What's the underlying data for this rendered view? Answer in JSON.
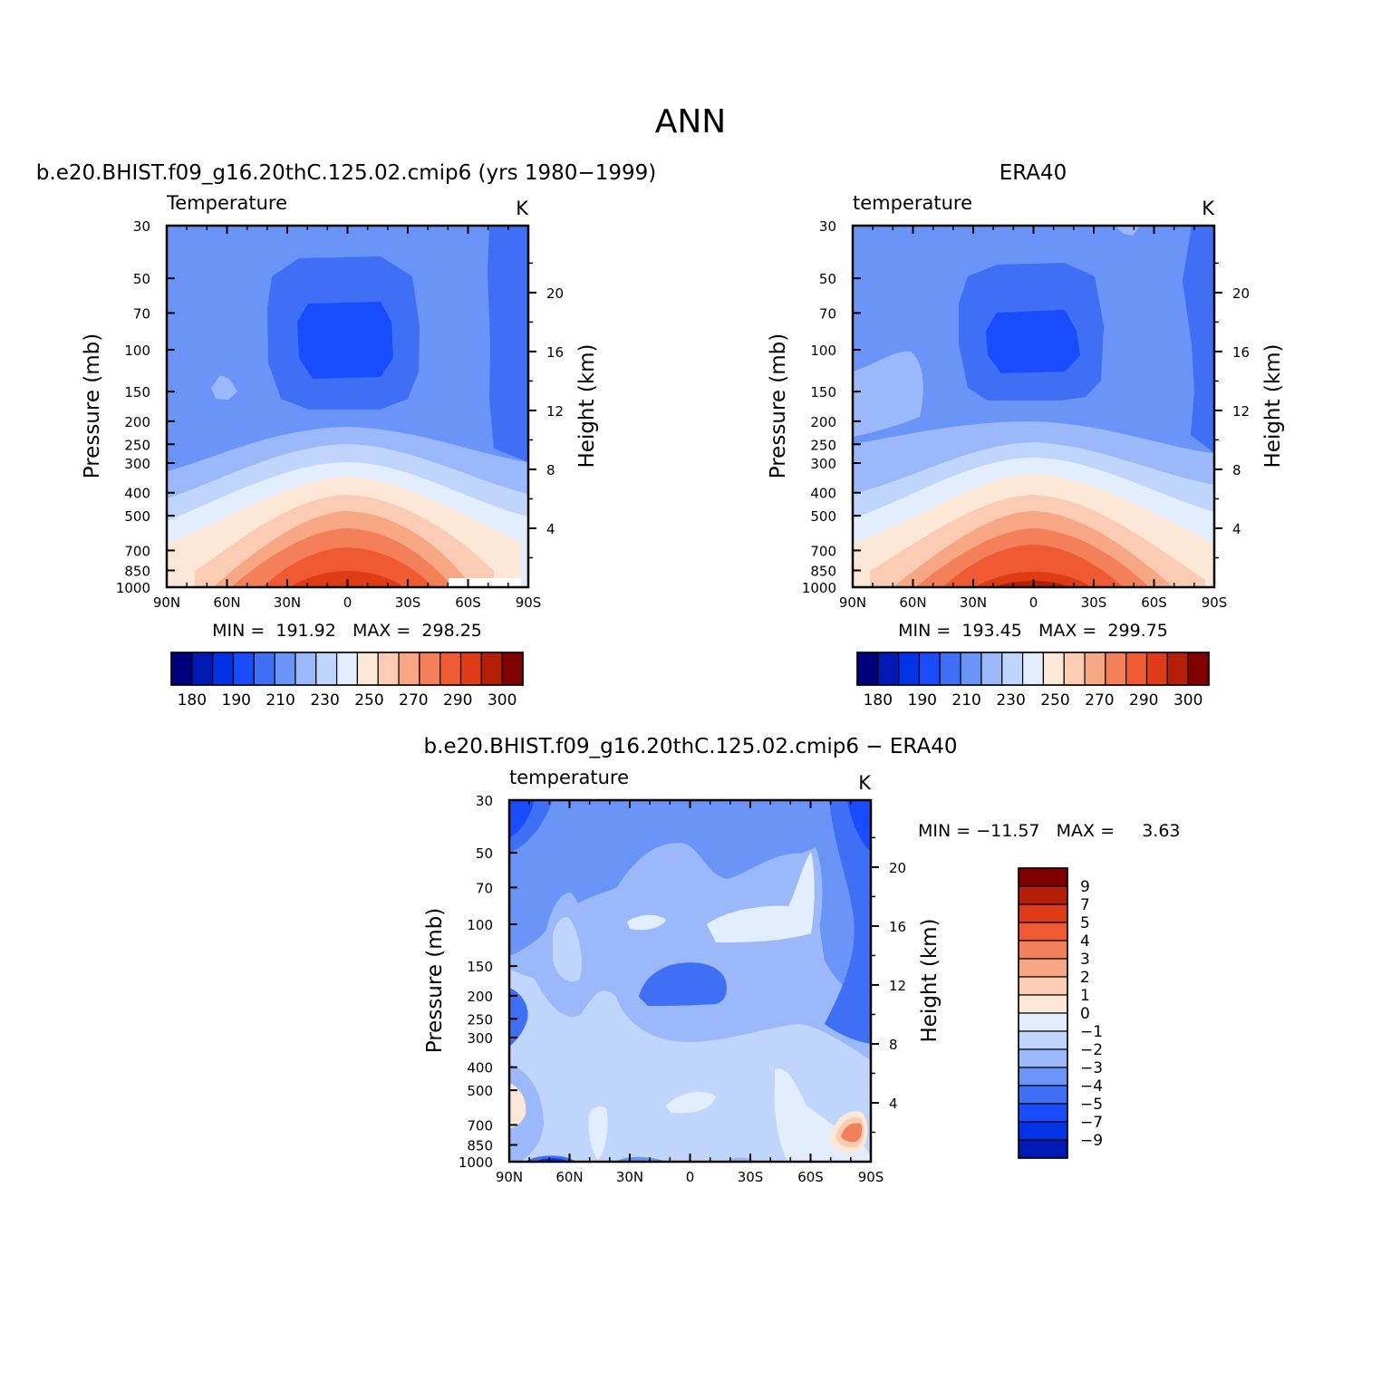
{
  "figure_title": "ANN",
  "colors": {
    "temp_palette": [
      "#00007f",
      "#0019b3",
      "#0032e6",
      "#1a4cff",
      "#3f6ff5",
      "#6a94f7",
      "#9ab8fa",
      "#c0d5fc",
      "#e2edfd",
      "#fde8d8",
      "#fbcbb3",
      "#f7a783",
      "#f4805a",
      "#ef5a32",
      "#de3c16",
      "#b51f07",
      "#800000"
    ]
  },
  "chart_data": [
    {
      "id": "model",
      "type": "contour",
      "title": "b.e20.BHIST.f09_g16.20thC.125.02.cmip6 (yrs 1980−1999)",
      "variable": "Temperature",
      "units": "K",
      "ylabel_left": "Pressure (mb)",
      "ylabel_right": "Height (km)",
      "x_ticks": [
        "90N",
        "60N",
        "30N",
        "0",
        "30S",
        "60S",
        "90S"
      ],
      "y_ticks": [
        "30",
        "50",
        "70",
        "100",
        "150",
        "200",
        "250",
        "300",
        "400",
        "500",
        "700",
        "850",
        "1000"
      ],
      "height_ticks": [
        "20",
        "16",
        "12",
        "8",
        "4"
      ],
      "stats": "MIN =  191.92   MAX =  298.25",
      "min": 191.92,
      "max": 298.25,
      "colorbar_labels": [
        "180",
        "190",
        "210",
        "230",
        "250",
        "270",
        "290",
        "300"
      ]
    },
    {
      "id": "obs",
      "type": "contour",
      "title": "ERA40",
      "variable": "temperature",
      "units": "K",
      "ylabel_left": "Pressure (mb)",
      "ylabel_right": "Height (km)",
      "x_ticks": [
        "90N",
        "60N",
        "30N",
        "0",
        "30S",
        "60S",
        "90S"
      ],
      "y_ticks": [
        "30",
        "50",
        "70",
        "100",
        "150",
        "200",
        "250",
        "300",
        "400",
        "500",
        "700",
        "850",
        "1000"
      ],
      "height_ticks": [
        "20",
        "16",
        "12",
        "8",
        "4"
      ],
      "stats": "MIN =  193.45   MAX =  299.75",
      "min": 193.45,
      "max": 299.75,
      "colorbar_labels": [
        "180",
        "190",
        "210",
        "230",
        "250",
        "270",
        "290",
        "300"
      ]
    },
    {
      "id": "diff",
      "type": "contour",
      "title": "b.e20.BHIST.f09_g16.20thC.125.02.cmip6 − ERA40",
      "variable": "temperature",
      "units": "K",
      "ylabel_left": "Pressure (mb)",
      "ylabel_right": "Height (km)",
      "x_ticks": [
        "90N",
        "60N",
        "30N",
        "0",
        "30S",
        "60S",
        "90S"
      ],
      "y_ticks": [
        "30",
        "50",
        "70",
        "100",
        "150",
        "200",
        "250",
        "300",
        "400",
        "500",
        "700",
        "850",
        "1000"
      ],
      "height_ticks": [
        "20",
        "16",
        "12",
        "8",
        "4"
      ],
      "stats": "MIN = −11.57   MAX =     3.63",
      "min": -11.57,
      "max": 3.63,
      "colorbar_labels": [
        "9",
        "7",
        "5",
        "4",
        "3",
        "2",
        "1",
        "0",
        "−1",
        "−2",
        "−3",
        "−4",
        "−5",
        "−7",
        "−9"
      ]
    }
  ]
}
